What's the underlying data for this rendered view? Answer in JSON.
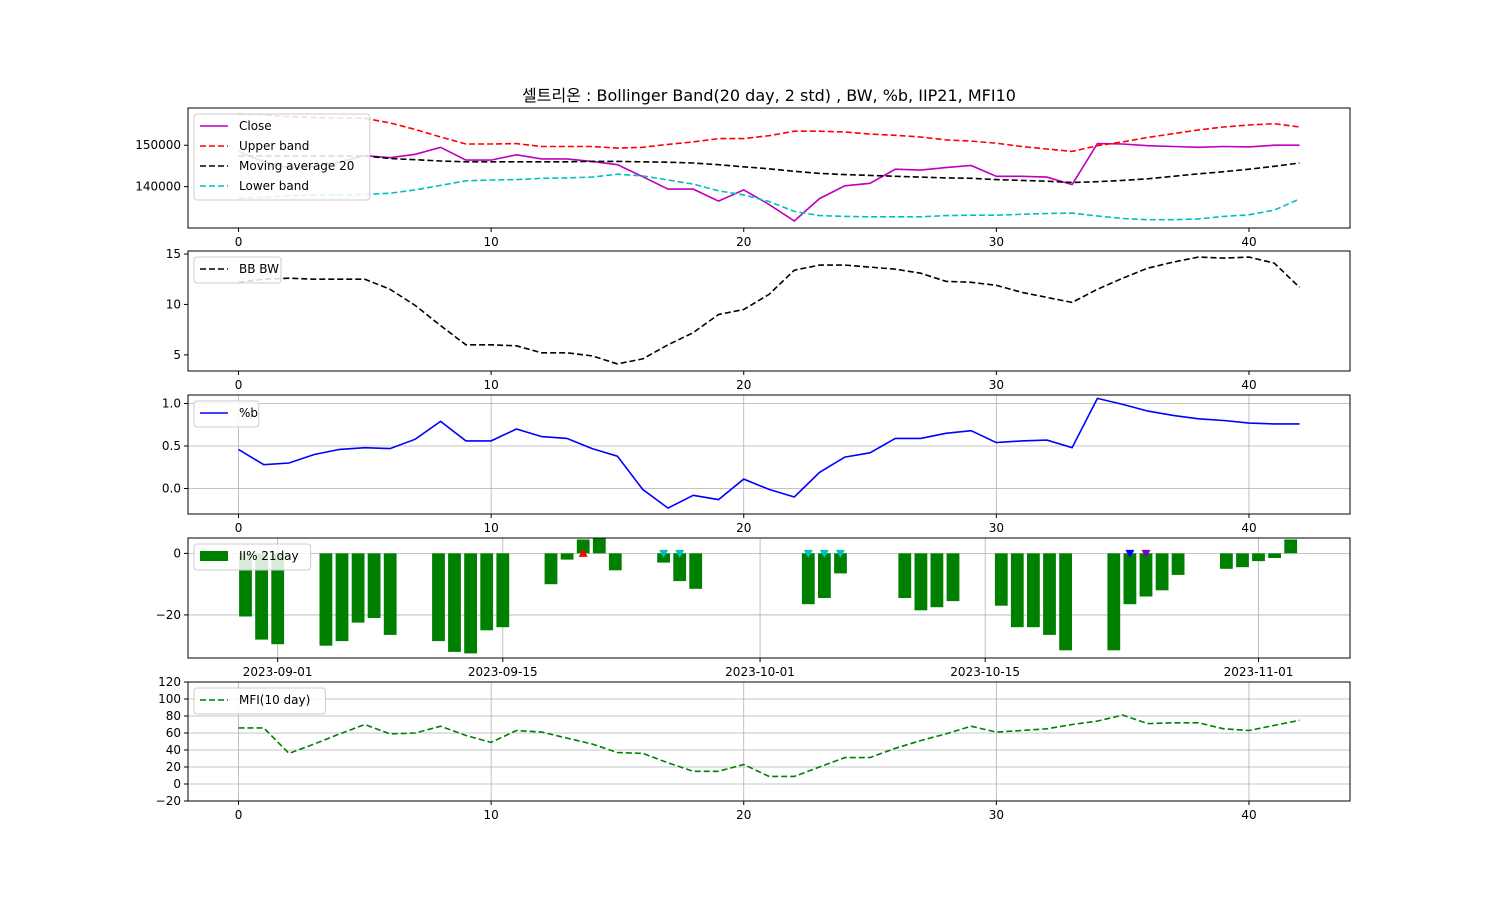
{
  "figure": {
    "title": "셀트리온 : Bollinger Band(20 day, 2 std) , BW, %b, IIP21, MFI10"
  },
  "chart_data": [
    {
      "type": "line",
      "name": "price-bands",
      "xlim": [
        -2,
        44
      ],
      "ylim": [
        130000,
        159000
      ],
      "x_ticks": [
        0,
        10,
        20,
        30,
        40
      ],
      "y_ticks": [
        140000,
        150000
      ],
      "y_tick_labels": [
        "140000",
        "150000"
      ],
      "grid": false,
      "legend_position": "upper-left",
      "series": [
        {
          "name": "Close",
          "color": "#bf00bf",
          "dash": "solid",
          "values": [
            148500,
            146000,
            144500,
            144800,
            146000,
            147500,
            147000,
            147800,
            149500,
            146400,
            146400,
            147700,
            146700,
            146700,
            146100,
            145300,
            142400,
            139400,
            139400,
            136500,
            139200,
            135700,
            131700,
            137100,
            140200,
            140800,
            144200,
            144000,
            144600,
            145100,
            142500,
            142500,
            142300,
            140500,
            150400,
            150300,
            149900,
            149700,
            149500,
            149700,
            149600,
            150000,
            150000
          ]
        },
        {
          "name": "Upper band",
          "color": "#ff0000",
          "dash": "dashed",
          "values": [
            157500,
            157400,
            156900,
            156700,
            156600,
            156500,
            155400,
            153800,
            152000,
            150300,
            150300,
            150400,
            149700,
            149700,
            149700,
            149300,
            149500,
            150200,
            150800,
            151600,
            151600,
            152300,
            153400,
            153400,
            153200,
            152700,
            152400,
            152000,
            151300,
            151000,
            150500,
            149700,
            149100,
            148500,
            149900,
            150800,
            151900,
            152800,
            153700,
            154400,
            154900,
            155200,
            154400
          ]
        },
        {
          "name": "Moving average 20",
          "color": "#000000",
          "dash": "dashed",
          "values": [
            147400,
            147400,
            147400,
            147400,
            147400,
            147400,
            146800,
            146500,
            146200,
            146000,
            146000,
            146000,
            146000,
            146000,
            146100,
            146100,
            146000,
            145900,
            145700,
            145300,
            144800,
            144300,
            143700,
            143200,
            142900,
            142700,
            142500,
            142300,
            142100,
            142000,
            141700,
            141500,
            141300,
            141000,
            141200,
            141500,
            141900,
            142500,
            143100,
            143600,
            144200,
            144900,
            145700
          ]
        },
        {
          "name": "Lower band",
          "color": "#00bfbf",
          "dash": "dashed",
          "values": [
            137200,
            137400,
            137800,
            138000,
            138000,
            138100,
            138400,
            139200,
            140300,
            141400,
            141600,
            141700,
            142000,
            142100,
            142300,
            143000,
            142600,
            141600,
            140600,
            139000,
            138000,
            136400,
            134000,
            133000,
            132800,
            132700,
            132700,
            132700,
            133000,
            133100,
            133100,
            133300,
            133500,
            133600,
            132900,
            132300,
            132000,
            132000,
            132200,
            132800,
            133200,
            134300,
            137000
          ]
        }
      ]
    },
    {
      "type": "line",
      "name": "bandwidth",
      "xlim": [
        -2,
        44
      ],
      "ylim": [
        3.4,
        15.3
      ],
      "x_ticks": [
        0,
        10,
        20,
        30,
        40
      ],
      "y_ticks": [
        5,
        10,
        15
      ],
      "y_tick_labels": [
        "5",
        "10",
        "15"
      ],
      "grid": false,
      "legend_position": "upper-left",
      "series": [
        {
          "name": "BB BW",
          "color": "#000000",
          "dash": "dashed",
          "values": [
            12.2,
            12.5,
            12.6,
            12.5,
            12.5,
            12.5,
            11.5,
            9.9,
            7.9,
            6.0,
            6.0,
            5.9,
            5.2,
            5.2,
            4.9,
            4.1,
            4.6,
            6.0,
            7.2,
            9.0,
            9.5,
            11.0,
            13.4,
            13.9,
            13.9,
            13.7,
            13.5,
            13.1,
            12.3,
            12.2,
            11.9,
            11.2,
            10.7,
            10.2,
            11.5,
            12.6,
            13.6,
            14.2,
            14.7,
            14.6,
            14.7,
            14.1,
            11.7
          ]
        }
      ]
    },
    {
      "type": "line",
      "name": "percent-b",
      "xlim": [
        -2,
        44
      ],
      "ylim": [
        -0.3,
        1.1
      ],
      "x_ticks": [
        0,
        10,
        20,
        30,
        40
      ],
      "y_ticks": [
        0.0,
        0.5,
        1.0
      ],
      "y_tick_labels": [
        "0.0",
        "0.5",
        "1.0"
      ],
      "grid": true,
      "legend_position": "upper-left",
      "series": [
        {
          "name": "%b",
          "color": "#0000ff",
          "dash": "solid",
          "values": [
            0.46,
            0.28,
            0.3,
            0.4,
            0.46,
            0.48,
            0.47,
            0.58,
            0.79,
            0.56,
            0.56,
            0.7,
            0.61,
            0.59,
            0.47,
            0.38,
            -0.01,
            -0.23,
            -0.08,
            -0.13,
            0.11,
            -0.01,
            -0.1,
            0.19,
            0.37,
            0.42,
            0.59,
            0.59,
            0.65,
            0.68,
            0.54,
            0.56,
            0.57,
            0.48,
            1.06,
            0.99,
            0.91,
            0.86,
            0.82,
            0.8,
            0.77,
            0.76,
            0.76
          ]
        }
      ]
    },
    {
      "type": "bar",
      "name": "iip21",
      "x_axis": "dates",
      "ylim": [
        -34,
        5
      ],
      "y_ticks": [
        -20,
        0
      ],
      "y_tick_labels": [
        "−20",
        "0"
      ],
      "x_tick_labels": [
        "2023-09-01",
        "2023-09-15",
        "2023-10-01",
        "2023-10-15",
        "2023-11-01"
      ],
      "grid": true,
      "legend_position": "upper-left",
      "series": [
        {
          "name": "II% 21day",
          "color": "#008000",
          "dates": [
            "2023-08-30",
            "2023-08-31",
            "2023-09-01",
            "2023-09-04",
            "2023-09-05",
            "2023-09-06",
            "2023-09-07",
            "2023-09-08",
            "2023-09-11",
            "2023-09-12",
            "2023-09-13",
            "2023-09-14",
            "2023-09-15",
            "2023-09-18",
            "2023-09-19",
            "2023-09-20",
            "2023-09-21",
            "2023-09-22",
            "2023-09-25",
            "2023-09-26",
            "2023-09-27",
            "2023-10-04",
            "2023-10-05",
            "2023-10-06",
            "2023-10-10",
            "2023-10-11",
            "2023-10-12",
            "2023-10-13",
            "2023-10-16",
            "2023-10-17",
            "2023-10-18",
            "2023-10-19",
            "2023-10-20",
            "2023-10-23",
            "2023-10-24",
            "2023-10-25",
            "2023-10-26",
            "2023-10-27",
            "2023-10-30",
            "2023-10-31",
            "2023-11-01",
            "2023-11-02",
            "2023-11-03"
          ],
          "values": [
            -20.5,
            -28,
            -29.5,
            -30,
            -28.5,
            -22.5,
            -21,
            -26.5,
            -28.5,
            -32,
            -32.5,
            -25,
            -24,
            -10,
            -2,
            4.5,
            5,
            -5.5,
            -3,
            -9,
            -11.5,
            -16.5,
            -14.5,
            -6.5,
            -14.5,
            -18.5,
            -17.5,
            -15.5,
            -17,
            -24,
            -24,
            -26.5,
            -31.5,
            -31.5,
            -16.5,
            -14,
            -12,
            -7,
            -5,
            -4.5,
            -2.5,
            -1.5,
            4.5
          ]
        }
      ],
      "markers": [
        {
          "date": "2023-09-20",
          "value": 0,
          "symbol": "triangle-up",
          "color": "#ff0000"
        },
        {
          "date": "2023-09-25",
          "value": 0,
          "symbol": "triangle-down",
          "color": "#00bfbf"
        },
        {
          "date": "2023-09-26",
          "value": 0,
          "symbol": "triangle-down",
          "color": "#00bfbf"
        },
        {
          "date": "2023-10-04",
          "value": 0,
          "symbol": "triangle-down",
          "color": "#00bfbf"
        },
        {
          "date": "2023-10-05",
          "value": 0,
          "symbol": "triangle-down",
          "color": "#00bfbf"
        },
        {
          "date": "2023-10-06",
          "value": 0,
          "symbol": "triangle-down",
          "color": "#00bfbf"
        },
        {
          "date": "2023-10-24",
          "value": 0,
          "symbol": "triangle-down",
          "color": "#0000ff"
        },
        {
          "date": "2023-10-25",
          "value": 0,
          "symbol": "triangle-down",
          "color": "#8000c0"
        }
      ]
    },
    {
      "type": "line",
      "name": "mfi",
      "xlim": [
        -2,
        44
      ],
      "ylim": [
        -20,
        120
      ],
      "x_ticks": [
        0,
        10,
        20,
        30,
        40
      ],
      "y_ticks": [
        -20,
        0,
        20,
        40,
        60,
        80,
        100,
        120
      ],
      "y_tick_labels": [
        "−20",
        "0",
        "20",
        "40",
        "60",
        "80",
        "100",
        "120"
      ],
      "grid": true,
      "legend_position": "upper-left",
      "series": [
        {
          "name": "MFI(10 day)",
          "color": "#008000",
          "dash": "dashed",
          "values": [
            66,
            66,
            36,
            47,
            59,
            70,
            59,
            60,
            68,
            57,
            49,
            63,
            61,
            54,
            47,
            37,
            36,
            25,
            15,
            15,
            23,
            9,
            9,
            20,
            31,
            31,
            42,
            51,
            59,
            68,
            61,
            63,
            65,
            70,
            74,
            81,
            71,
            72,
            72,
            65,
            63,
            69,
            75
          ]
        }
      ]
    }
  ]
}
